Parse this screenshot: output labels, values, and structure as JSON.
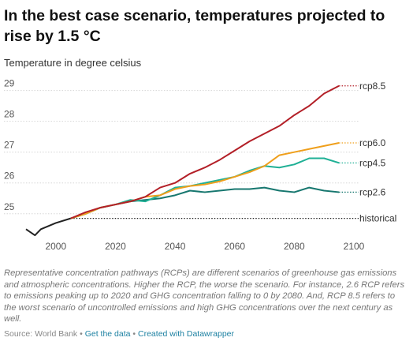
{
  "chart_data": {
    "type": "line",
    "title": "In the best case scenario, temperatures projected to rise by 1.5 °C",
    "subtitle": "Temperature in degree celsius",
    "x": [
      1990,
      1993,
      1995,
      2000,
      2005,
      2010,
      2015,
      2020,
      2025,
      2030,
      2035,
      2040,
      2045,
      2050,
      2055,
      2060,
      2065,
      2070,
      2075,
      2080,
      2085,
      2090,
      2095
    ],
    "series": [
      {
        "name": "historical",
        "color": "#222222",
        "values": [
          24.5,
          24.3,
          24.5,
          24.7,
          24.85,
          null,
          null,
          null,
          null,
          null,
          null,
          null,
          null,
          null,
          null,
          null,
          null,
          null,
          null,
          null,
          null,
          null,
          null
        ]
      },
      {
        "name": "rcp2.6",
        "color": "#17776f",
        "values": [
          null,
          null,
          null,
          null,
          24.85,
          25.0,
          25.2,
          25.3,
          25.4,
          25.45,
          25.5,
          25.6,
          25.75,
          25.7,
          25.75,
          25.8,
          25.8,
          25.85,
          25.75,
          25.7,
          25.85,
          25.75,
          25.7
        ]
      },
      {
        "name": "rcp4.5",
        "color": "#1fb095",
        "values": [
          null,
          null,
          null,
          null,
          24.85,
          25.0,
          25.2,
          25.3,
          25.45,
          25.4,
          25.6,
          25.85,
          25.9,
          26.0,
          26.1,
          26.2,
          26.4,
          26.55,
          26.5,
          26.6,
          26.8,
          26.8,
          26.65
        ]
      },
      {
        "name": "rcp6.0",
        "color": "#ef9f1c",
        "values": [
          null,
          null,
          null,
          null,
          24.85,
          25.0,
          25.2,
          25.3,
          25.4,
          25.55,
          25.6,
          25.8,
          25.9,
          25.95,
          26.05,
          26.2,
          26.35,
          26.55,
          26.9,
          27.0,
          27.1,
          27.2,
          27.3
        ]
      },
      {
        "name": "rcp8.5",
        "color": "#b31f27",
        "values": [
          null,
          null,
          null,
          null,
          24.85,
          25.05,
          25.2,
          25.3,
          25.4,
          25.55,
          25.85,
          26.0,
          26.3,
          26.5,
          26.75,
          27.05,
          27.35,
          27.6,
          27.85,
          28.2,
          28.5,
          28.9,
          29.15
        ]
      }
    ],
    "xlim": [
      1990,
      2100
    ],
    "xticks": [
      2000,
      2020,
      2040,
      2060,
      2080,
      2100
    ],
    "ylim": [
      24.2,
      29.4
    ],
    "yticks": [
      25,
      26,
      27,
      28,
      29
    ],
    "grid": true,
    "notes": "Representative concentration pathways (RCPs) are different scenarios of greenhouse gas emissions and atmospheric concentrations. Higher the RCP, the worse the scenario. For instance, 2.6 RCP refers to emissions peaking up to 2020 and GHG concentration falling to 0 by 2080. And, RCP 8.5 refers to the worst scenario of uncontrolled emissions and high GHG concentrations over the next century as well.",
    "source": "Source: World Bank",
    "links": [
      "Get the data",
      "Created with Datawrapper"
    ]
  }
}
